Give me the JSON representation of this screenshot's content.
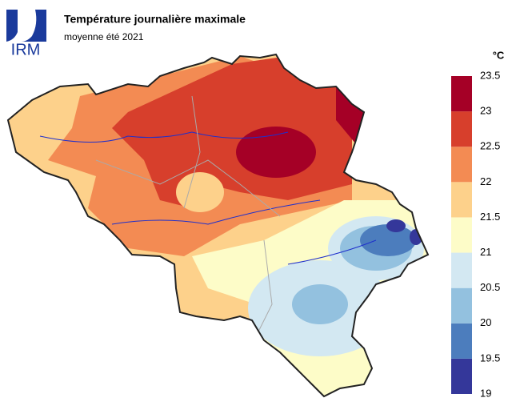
{
  "logo": "IRM",
  "title": "Température journalière maximale",
  "subtitle": "moyenne été 2021",
  "legend": {
    "unit": "°C",
    "ticks": [
      19,
      19.5,
      20,
      20.5,
      21,
      21.5,
      22,
      22.5,
      23,
      23.5
    ],
    "colors": [
      "#34379a",
      "#4c7dbd",
      "#93c1df",
      "#d3e8f2",
      "#fdfcc8",
      "#fdd18b",
      "#f38b53",
      "#d73f2c",
      "#a50026"
    ]
  }
}
